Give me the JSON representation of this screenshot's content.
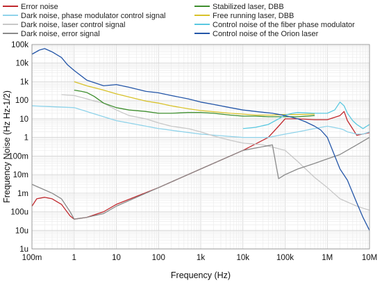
{
  "chart_data": {
    "type": "line",
    "xscale": "log",
    "yscale": "log",
    "xlabel": "Frequency (Hz)",
    "ylabel": "Frequency Noise (Hz Hz-1/2)",
    "xlim": [
      0.1,
      10000000
    ],
    "ylim": [
      1e-06,
      100000
    ],
    "grid": true,
    "legend_position": "top",
    "x_ticks": [
      {
        "value": 0.1,
        "label": "100m"
      },
      {
        "value": 1,
        "label": "1"
      },
      {
        "value": 10,
        "label": "10"
      },
      {
        "value": 100,
        "label": "100"
      },
      {
        "value": 1000,
        "label": "1k"
      },
      {
        "value": 10000,
        "label": "10k"
      },
      {
        "value": 100000,
        "label": "100k"
      },
      {
        "value": 1000000,
        "label": "1M"
      },
      {
        "value": 10000000,
        "label": "10M"
      }
    ],
    "y_ticks": [
      {
        "value": 100000,
        "label": "100k"
      },
      {
        "value": 10000,
        "label": "10k"
      },
      {
        "value": 1000,
        "label": "1k"
      },
      {
        "value": 100,
        "label": "100"
      },
      {
        "value": 10,
        "label": "10"
      },
      {
        "value": 1,
        "label": "1"
      },
      {
        "value": 0.1,
        "label": "100m"
      },
      {
        "value": 0.01,
        "label": "10m"
      },
      {
        "value": 0.001,
        "label": "1m"
      },
      {
        "value": 0.0001,
        "label": "100u"
      },
      {
        "value": 1e-05,
        "label": "10u"
      },
      {
        "value": 1e-06,
        "label": "1u"
      }
    ],
    "series": [
      {
        "name": "Error noise",
        "color": "#c0282d",
        "x": [
          0.1,
          0.13,
          0.2,
          0.3,
          0.5,
          0.8,
          1,
          2,
          5,
          10,
          100,
          1000,
          10000,
          40000,
          70000,
          100000,
          200000,
          500000,
          1000000,
          2000000,
          2500000,
          3000000,
          5000000,
          10000000
        ],
        "y": [
          0.0002,
          0.0005,
          0.0006,
          0.0005,
          0.00025,
          6e-05,
          4e-05,
          5e-05,
          0.0001,
          0.00025,
          0.002,
          0.02,
          0.2,
          1,
          4,
          10,
          10,
          9,
          9,
          15,
          25,
          8,
          1.3,
          1.8
        ]
      },
      {
        "name": "Dark noise, phase modulator control signal",
        "color": "#8fd3ea",
        "x": [
          0.1,
          1,
          10,
          100,
          1000,
          10000,
          20000,
          40000,
          100000,
          200000,
          500000,
          1000000,
          2000000,
          2500000,
          3000000,
          5000000,
          7000000,
          10000000
        ],
        "y": [
          50,
          40,
          8,
          3,
          1.5,
          1,
          1,
          1,
          1.5,
          2,
          3,
          4,
          3,
          2.5,
          2,
          1.5,
          1.5,
          2
        ]
      },
      {
        "name": "Dark noise, laser control signal",
        "color": "#c8c8c8",
        "x": [
          0.5,
          1,
          2,
          3,
          5,
          10,
          20,
          50,
          100,
          200,
          500,
          1000,
          2000,
          5000,
          10000,
          30000,
          50000,
          100000,
          200000,
          500000,
          1000000,
          2000000,
          5000000,
          10000000
        ],
        "y": [
          200,
          180,
          120,
          90,
          70,
          30,
          15,
          10,
          6,
          4,
          3,
          2,
          1.2,
          0.7,
          0.5,
          0.4,
          0.3,
          0.2,
          0.05,
          0.007,
          0.002,
          0.0005,
          0.0002,
          0.00012
        ]
      },
      {
        "name": "Dark noise, error signal",
        "color": "#8a8a8a",
        "x": [
          0.1,
          0.2,
          0.3,
          0.5,
          0.8,
          1,
          2,
          5,
          10,
          100,
          1000,
          10000,
          50000,
          70000,
          100000,
          200000,
          500000,
          1000000,
          2000000,
          5000000,
          10000000
        ],
        "y": [
          0.003,
          0.0015,
          0.001,
          0.0005,
          0.0001,
          4e-05,
          5e-05,
          8e-05,
          0.0002,
          0.002,
          0.02,
          0.2,
          0.4,
          0.006,
          0.01,
          0.02,
          0.04,
          0.07,
          0.12,
          0.4,
          1
        ]
      },
      {
        "name": "Stabilized laser, DBB",
        "color": "#3e8e2e",
        "x": [
          1,
          1.5,
          2,
          3,
          5,
          10,
          20,
          50,
          100,
          200,
          500,
          1000,
          2000,
          5000,
          10000,
          20000,
          40000,
          100000,
          200000,
          500000
        ],
        "y": [
          350,
          300,
          260,
          160,
          70,
          40,
          30,
          25,
          20,
          20,
          22,
          22,
          20,
          16,
          14,
          14,
          13,
          13,
          13,
          15
        ]
      },
      {
        "name": "Free running laser, DBB",
        "color": "#d8c22a",
        "x": [
          1,
          2,
          5,
          10,
          20,
          50,
          100,
          200,
          500,
          1000,
          2000,
          5000,
          10000,
          20000,
          50000,
          100000,
          200000,
          500000
        ],
        "y": [
          1000,
          600,
          350,
          220,
          150,
          90,
          70,
          50,
          35,
          28,
          24,
          20,
          18,
          16,
          16,
          17,
          17,
          18
        ]
      },
      {
        "name": "Control noise of the fiber phase modulator",
        "color": "#59c8e0",
        "x": [
          10000,
          20000,
          40000,
          70000,
          100000,
          150000,
          200000,
          500000,
          1000000,
          1500000,
          2000000,
          2500000,
          3000000,
          4000000,
          5000000,
          7000000,
          10000000
        ],
        "y": [
          3,
          3.5,
          5,
          10,
          16,
          20,
          22,
          20,
          20,
          30,
          80,
          50,
          20,
          8,
          5,
          3,
          5
        ]
      },
      {
        "name": "Control noise of the Orion laser",
        "color": "#2456a8",
        "x": [
          0.1,
          0.15,
          0.2,
          0.3,
          0.5,
          0.7,
          1,
          2,
          5,
          10,
          20,
          50,
          100,
          200,
          500,
          1000,
          2000,
          5000,
          10000,
          20000,
          50000,
          100000,
          200000,
          300000,
          500000,
          700000,
          1000000,
          2000000,
          3000000,
          5000000,
          7000000,
          10000000
        ],
        "y": [
          30000,
          50000,
          60000,
          40000,
          20000,
          8000,
          4000,
          1200,
          600,
          700,
          500,
          300,
          250,
          180,
          120,
          80,
          60,
          40,
          30,
          25,
          20,
          15,
          10,
          7,
          4,
          2.5,
          1,
          0.02,
          0.005,
          0.0003,
          5e-05,
          1e-05
        ]
      }
    ]
  }
}
